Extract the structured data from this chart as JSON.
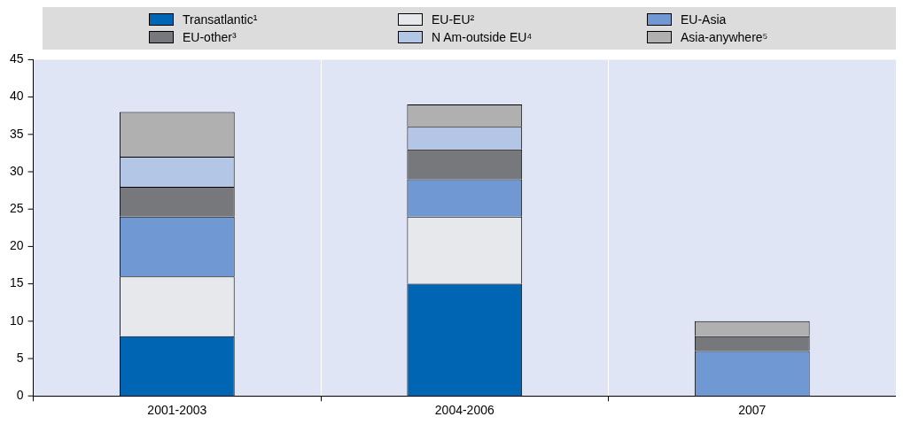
{
  "chart_data": {
    "type": "bar",
    "stacked": true,
    "categories": [
      "2001-2003",
      "2004-2006",
      "2007"
    ],
    "series": [
      {
        "name": "Transatlantic¹",
        "color": "#0066b3",
        "values": [
          8,
          15,
          0
        ]
      },
      {
        "name": "EU-EU²",
        "color": "#e6e8ec",
        "values": [
          8,
          9,
          0
        ]
      },
      {
        "name": "EU-Asia",
        "color": "#7099d3",
        "values": [
          8,
          5,
          6
        ]
      },
      {
        "name": "EU-other³",
        "color": "#77787b",
        "values": [
          4,
          4,
          2
        ]
      },
      {
        "name": "N Am-outside EU⁴",
        "color": "#b3c6e6",
        "values": [
          4,
          3,
          0
        ]
      },
      {
        "name": "Asia-anywhere⁵",
        "color": "#b0b0b0",
        "values": [
          6,
          3,
          2
        ]
      }
    ],
    "ylim": [
      0,
      45
    ],
    "yticks": [
      0,
      5,
      10,
      15,
      20,
      25,
      30,
      35,
      40,
      45
    ],
    "grid": "x",
    "legend": "top"
  }
}
